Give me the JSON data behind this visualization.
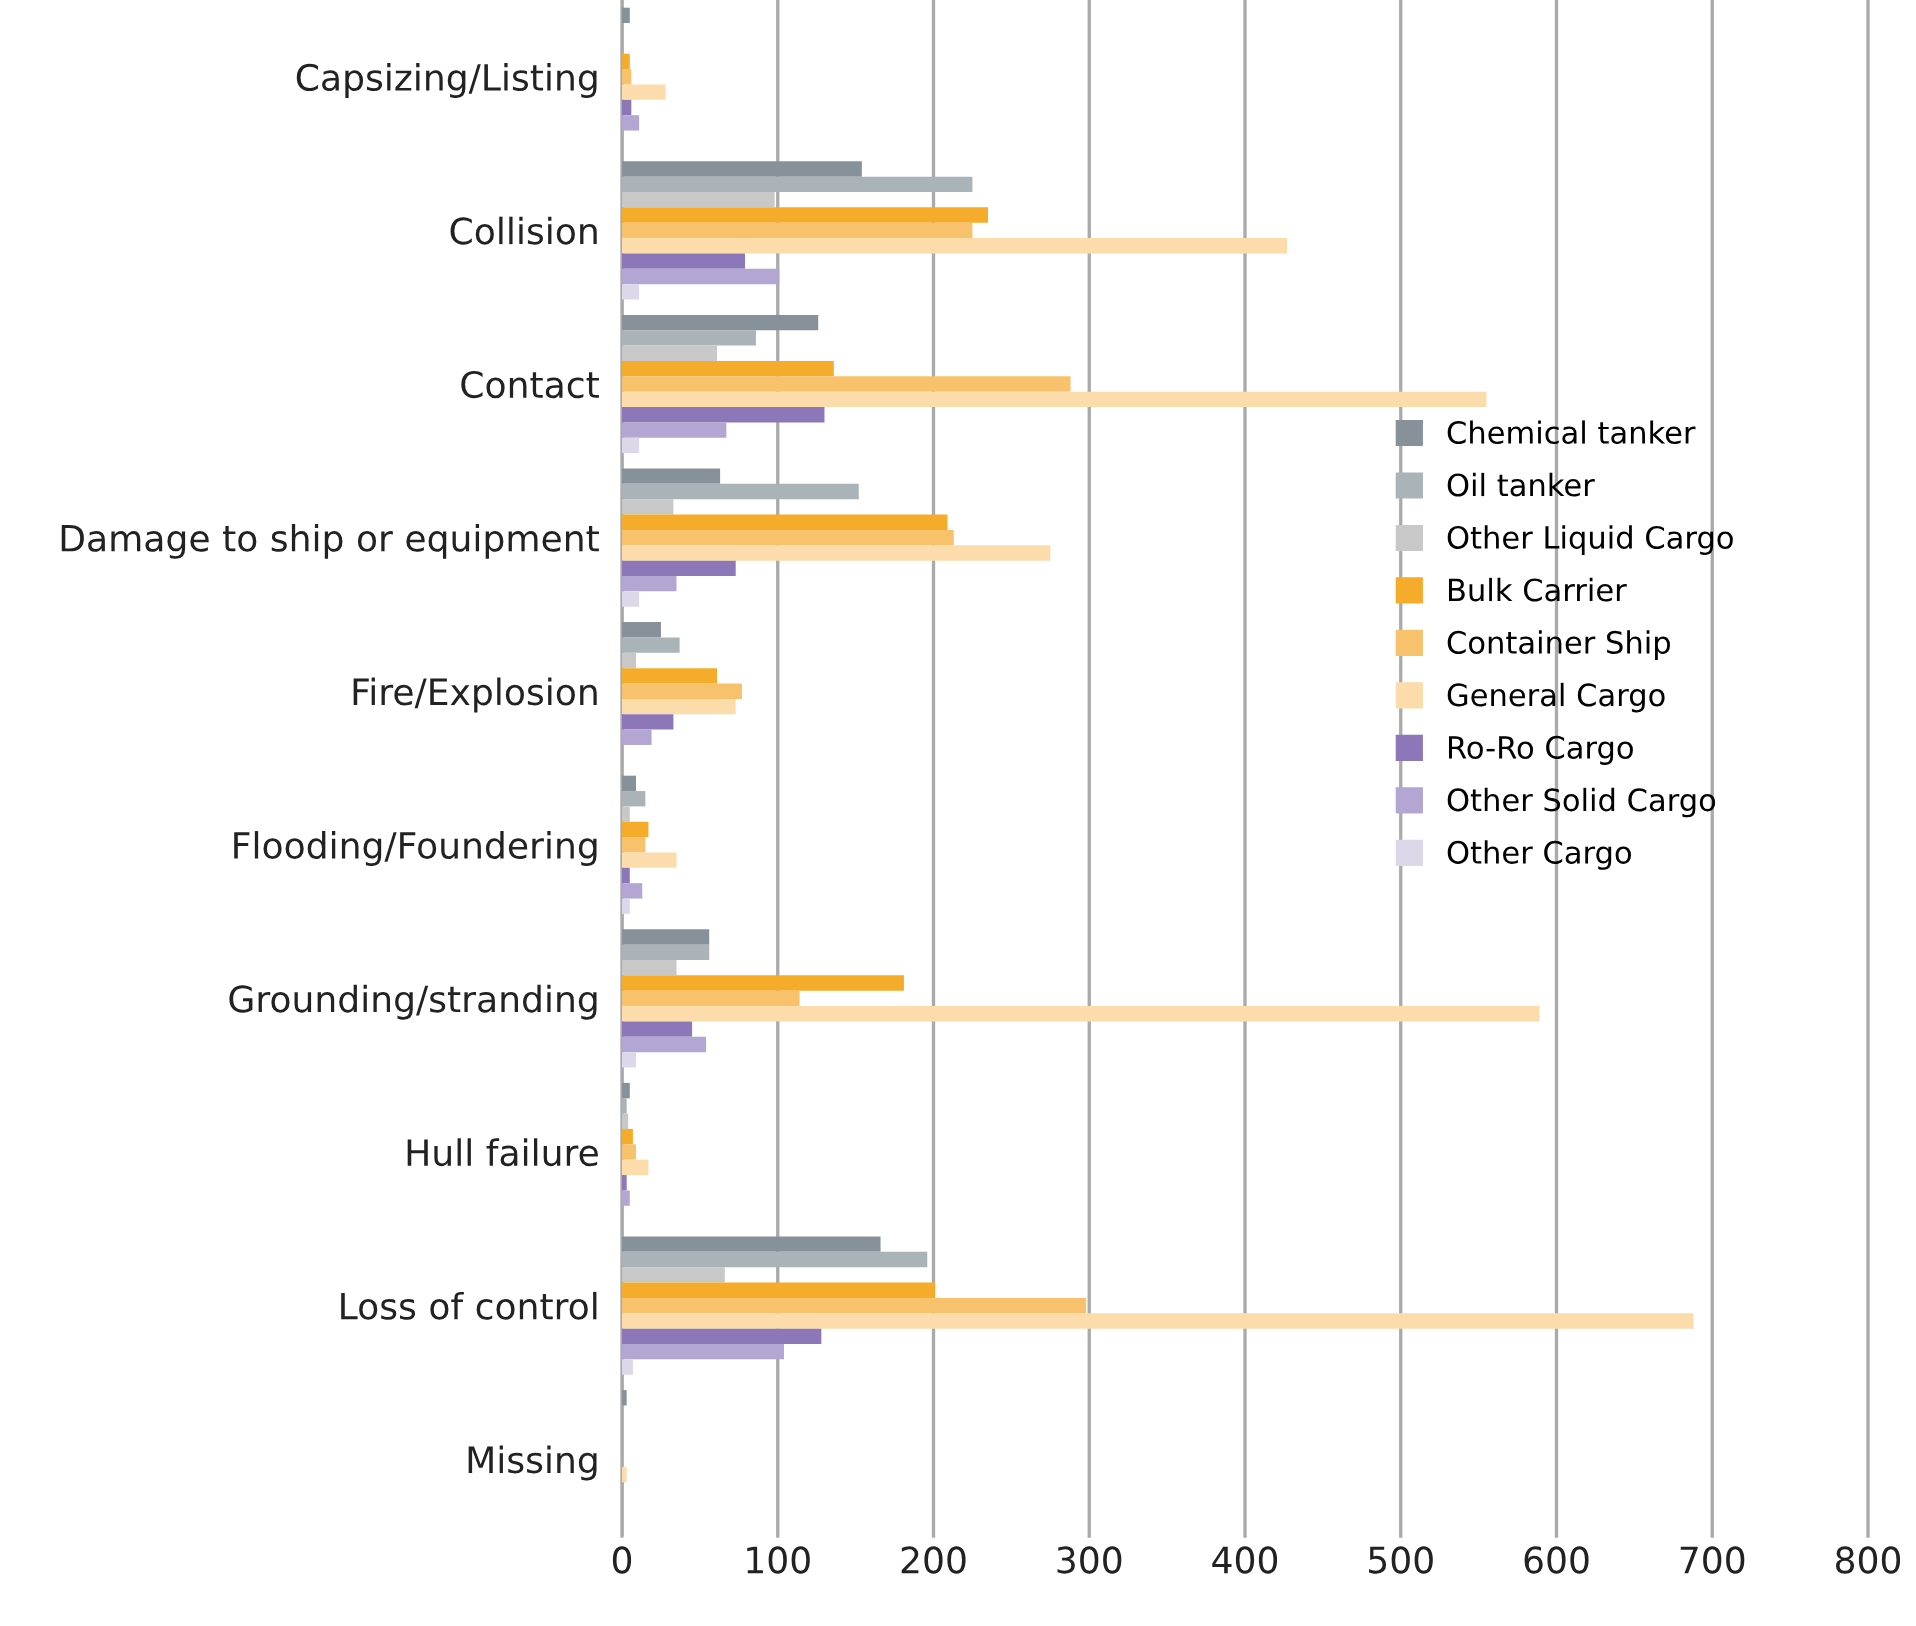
{
  "chart_data": {
    "type": "bar",
    "orientation": "horizontal",
    "categories": [
      "Capsizing/Listing",
      "Collision",
      "Contact",
      "Damage to ship or equipment",
      "Fire/Explosion",
      "Flooding/Foundering",
      "Grounding/stranding",
      "Hull failure",
      "Loss of control",
      "Missing"
    ],
    "series": [
      {
        "name": "Chemical tanker",
        "color": "#87919a",
        "values": [
          5,
          154,
          126,
          63,
          25,
          9,
          56,
          5,
          166,
          3
        ]
      },
      {
        "name": "Oil tanker",
        "color": "#aab4b8",
        "values": [
          null,
          225,
          86,
          152,
          37,
          15,
          56,
          3,
          196,
          0
        ]
      },
      {
        "name": "Other Liquid Cargo",
        "color": "#c8c8c8",
        "values": [
          null,
          98,
          61,
          33,
          9,
          5,
          35,
          4,
          66,
          0
        ]
      },
      {
        "name": "Bulk Carrier",
        "color": "#f5ac2a",
        "values": [
          5,
          235,
          136,
          209,
          61,
          17,
          181,
          7,
          201,
          0
        ]
      },
      {
        "name": "Container Ship",
        "color": "#f7c26b",
        "values": [
          6,
          225,
          288,
          213,
          77,
          15,
          114,
          9,
          298,
          0
        ]
      },
      {
        "name": "General Cargo",
        "color": "#fbdcaa",
        "values": [
          28,
          427,
          555,
          275,
          73,
          35,
          589,
          17,
          688,
          3
        ]
      },
      {
        "name": "Ro-Ro Cargo",
        "color": "#8c78b8",
        "values": [
          6,
          79,
          130,
          73,
          33,
          5,
          45,
          3,
          128,
          0
        ]
      },
      {
        "name": "Other Solid Cargo",
        "color": "#b3a6d2",
        "values": [
          11,
          101,
          67,
          35,
          19,
          13,
          54,
          5,
          104,
          0
        ]
      },
      {
        "name": "Other Cargo",
        "color": "#dcd8ea",
        "values": [
          null,
          11,
          11,
          11,
          null,
          5,
          9,
          null,
          7,
          0
        ]
      }
    ],
    "xlim": [
      0,
      800
    ],
    "xticks": [
      0,
      100,
      200,
      300,
      400,
      500,
      600,
      700,
      800
    ],
    "grid": "x",
    "legend": "right"
  }
}
